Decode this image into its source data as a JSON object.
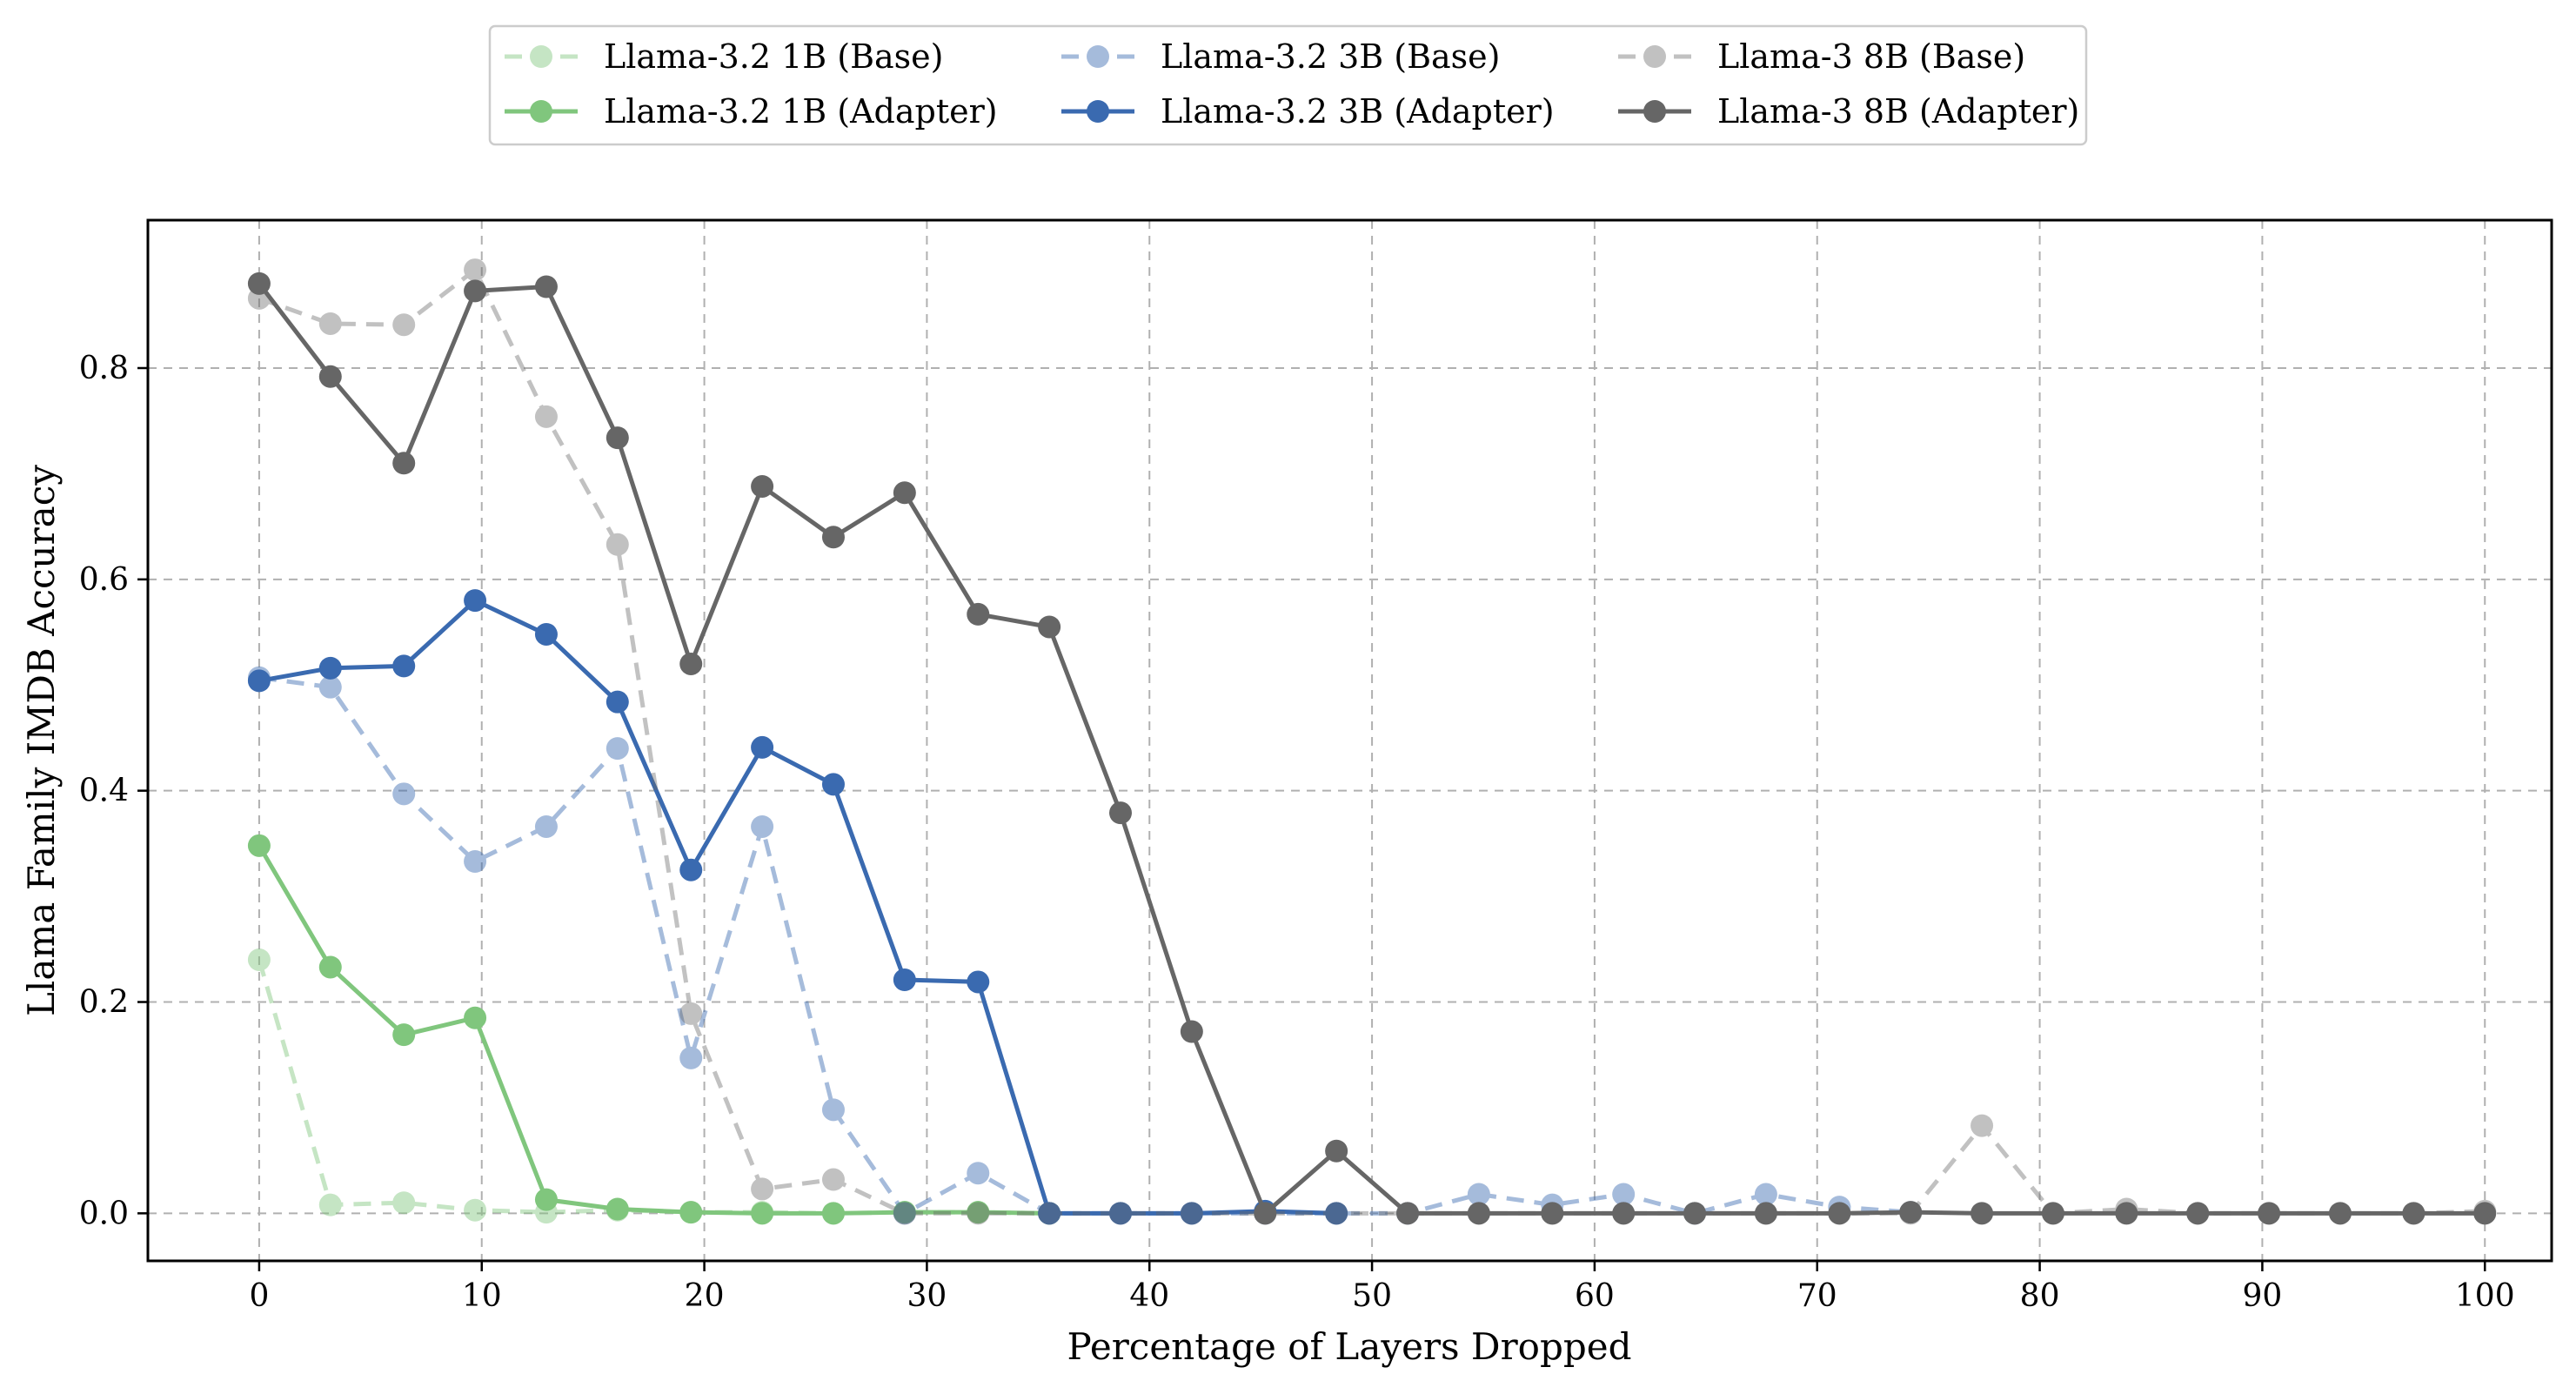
{
  "chart_data": {
    "type": "line",
    "title": "",
    "xlabel": "Percentage of Layers Dropped",
    "ylabel": "Llama Family IMDB Accuracy",
    "xlim": [
      -5,
      103
    ],
    "ylim": [
      -0.045,
      0.94
    ],
    "xticks": [
      0,
      10,
      20,
      30,
      40,
      50,
      60,
      70,
      80,
      90,
      100
    ],
    "yticks": [
      0.0,
      0.2,
      0.4,
      0.6,
      0.8
    ],
    "ytick_labels": [
      "0.0",
      "0.2",
      "0.4",
      "0.6",
      "0.8"
    ],
    "grid": true,
    "legend": {
      "placement": "top-center outside",
      "columns": 3
    },
    "series": [
      {
        "name": "Llama-3.2 1B (Base)",
        "color": "#80c67d",
        "style": "dashed",
        "alpha": 0.45,
        "x": [
          0,
          3.2,
          6.5,
          9.7,
          12.9,
          16.1,
          19.4,
          22.6,
          25.8,
          29.0,
          32.3,
          35.5
        ],
        "y": [
          0.24,
          0.008,
          0.01,
          0.003,
          0.001,
          0.003,
          0.001,
          0.001,
          0.0,
          0.001,
          0.001,
          0.0
        ]
      },
      {
        "name": "Llama-3.2 1B (Adapter)",
        "color": "#80c67d",
        "style": "solid",
        "alpha": 1.0,
        "x": [
          0,
          3.2,
          6.5,
          9.7,
          12.9,
          16.1,
          19.4,
          22.6,
          25.8,
          29.0,
          32.3,
          35.5
        ],
        "y": [
          0.348,
          0.233,
          0.169,
          0.185,
          0.013,
          0.004,
          0.001,
          0.0,
          0.0,
          0.001,
          0.001,
          0.0
        ]
      },
      {
        "name": "Llama-3.2 3B (Base)",
        "color": "#3a6ab0",
        "style": "dashed",
        "alpha": 0.45,
        "x": [
          0,
          3.2,
          6.5,
          9.7,
          12.9,
          16.1,
          19.4,
          22.6,
          25.8,
          29.0,
          32.3,
          35.5,
          38.7,
          41.9,
          45.2,
          48.4,
          51.6,
          54.8,
          58.1,
          61.3,
          64.5,
          67.7,
          71.0,
          74.2
        ],
        "y": [
          0.507,
          0.498,
          0.397,
          0.333,
          0.366,
          0.44,
          0.147,
          0.366,
          0.098,
          0.0,
          0.038,
          0.0,
          0.0,
          0.0,
          0.0,
          0.0,
          0.0,
          0.018,
          0.008,
          0.018,
          0.0,
          0.018,
          0.006,
          0.001
        ]
      },
      {
        "name": "Llama-3.2 3B (Adapter)",
        "color": "#3a6ab0",
        "style": "solid",
        "alpha": 1.0,
        "x": [
          0,
          3.2,
          6.5,
          9.7,
          12.9,
          16.1,
          19.4,
          22.6,
          25.8,
          29.0,
          32.3,
          35.5,
          38.7,
          41.9,
          45.2,
          48.4
        ],
        "y": [
          0.504,
          0.516,
          0.518,
          0.58,
          0.548,
          0.484,
          0.325,
          0.441,
          0.406,
          0.221,
          0.219,
          0.0,
          0.0,
          0.0,
          0.002,
          0.0
        ]
      },
      {
        "name": "Llama-3 8B (Base)",
        "color": "#666666",
        "style": "dashed",
        "alpha": 0.4,
        "x": [
          0,
          3.2,
          6.5,
          9.7,
          12.9,
          16.1,
          19.4,
          22.6,
          25.8,
          29.0,
          32.3,
          35.5,
          38.7,
          41.9,
          45.2,
          48.4,
          51.6,
          54.8,
          58.1,
          61.3,
          64.5,
          67.7,
          71.0,
          74.2,
          77.4,
          80.6,
          83.9,
          87.1,
          90.3,
          93.5,
          96.8,
          100
        ],
        "y": [
          0.866,
          0.842,
          0.841,
          0.893,
          0.754,
          0.633,
          0.189,
          0.023,
          0.032,
          0.0,
          0.0,
          0.0,
          0.0,
          0.0,
          0.0,
          0.0,
          0.0,
          0.0,
          0.0,
          0.0,
          0.0,
          0.0,
          0.0,
          0.0,
          0.083,
          0.0,
          0.004,
          0.0,
          0.0,
          0.0,
          0.0,
          0.002
        ]
      },
      {
        "name": "Llama-3 8B (Adapter)",
        "color": "#666666",
        "style": "solid",
        "alpha": 1.0,
        "x": [
          0,
          3.2,
          6.5,
          9.7,
          12.9,
          16.1,
          19.4,
          22.6,
          25.8,
          29.0,
          32.3,
          35.5,
          38.7,
          41.9,
          45.2,
          48.4,
          51.6,
          54.8,
          58.1,
          61.3,
          64.5,
          67.7,
          71.0,
          74.2,
          77.4,
          80.6,
          83.9,
          87.1,
          90.3,
          93.5,
          96.8,
          100
        ],
        "y": [
          0.88,
          0.792,
          0.71,
          0.873,
          0.877,
          0.734,
          0.52,
          0.688,
          0.64,
          0.682,
          0.567,
          0.555,
          0.379,
          0.172,
          0.0,
          0.059,
          0.0,
          0.0,
          0.0,
          0.0,
          0.0,
          0.0,
          0.0,
          0.001,
          0.0,
          0.0,
          0.0,
          0.0,
          0.0,
          0.0,
          0.0,
          0.0
        ]
      }
    ]
  }
}
